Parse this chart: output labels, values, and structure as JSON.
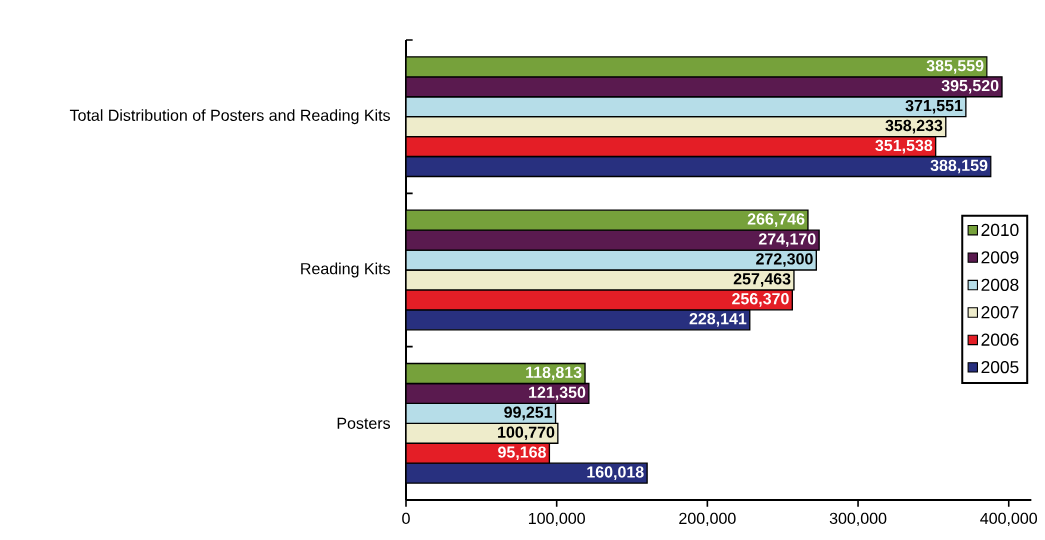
{
  "chart_data": {
    "type": "bar",
    "orientation": "horizontal",
    "categories": [
      "Total Distribution of Posters and Reading Kits",
      "Reading Kits",
      "Posters"
    ],
    "series": [
      {
        "name": "2005",
        "color": "#28307f",
        "values": [
          388159,
          228141,
          160018
        ],
        "value_labels": [
          "388,159",
          "228,141",
          "160,018"
        ]
      },
      {
        "name": "2006",
        "color": "#e41e26",
        "values": [
          351538,
          256370,
          95168
        ],
        "value_labels": [
          "351,538",
          "256,370",
          "95,168"
        ]
      },
      {
        "name": "2007",
        "color": "#eeeccb",
        "values": [
          358233,
          257463,
          100770
        ],
        "value_labels": [
          "358,233",
          "257,463",
          "100,770"
        ]
      },
      {
        "name": "2008",
        "color": "#b6dde8",
        "values": [
          371551,
          272300,
          99251
        ],
        "value_labels": [
          "371,551",
          "272,300",
          "99,251"
        ]
      },
      {
        "name": "2009",
        "color": "#5a1a4f",
        "values": [
          395520,
          274170,
          121350
        ],
        "value_labels": [
          "395,520",
          "274,170",
          "121,350"
        ]
      },
      {
        "name": "2010",
        "color": "#76a13b",
        "values": [
          385559,
          266746,
          118813
        ],
        "value_labels": [
          "385,559",
          "266,746",
          "118,813"
        ]
      }
    ],
    "xlim": [
      0,
      415000
    ],
    "xticks": [
      {
        "value": 0,
        "label": "0"
      },
      {
        "value": 100000,
        "label": "100,000"
      },
      {
        "value": 200000,
        "label": "200,000"
      },
      {
        "value": 300000,
        "label": "300,000"
      },
      {
        "value": 400000,
        "label": "400,000"
      }
    ],
    "grid": false,
    "legend": "right"
  }
}
